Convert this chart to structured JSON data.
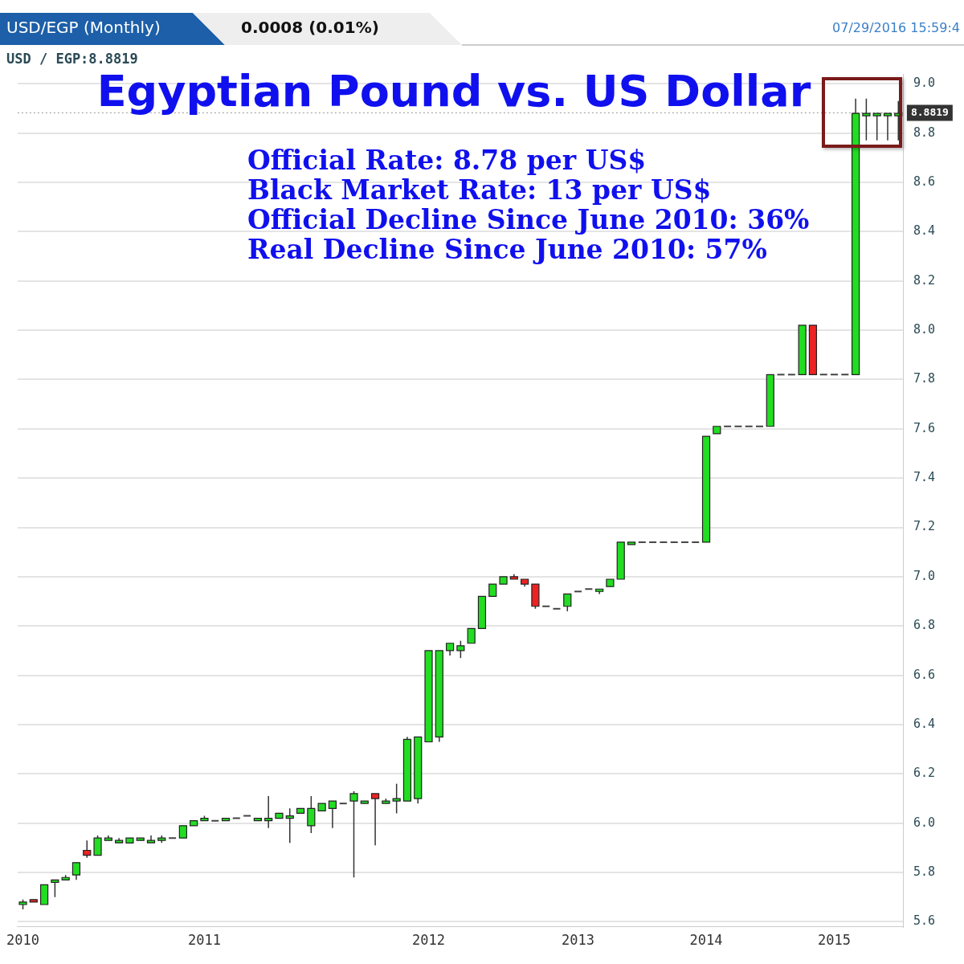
{
  "chart_data": {
    "type": "candlestick",
    "title": "Egyptian Pound vs. US Dollar",
    "annotations": [
      "USD/EGP (Monthly)",
      "0.0008 (0.01%)",
      "07/29/2016 15:59:4",
      "USD / EGP:8.8819",
      "Official Rate: 8.78 per US$",
      "Black Market Rate: 13 per US$",
      "Official Decline Since June 2010: 36%",
      "Real Decline Since June 2010: 57%"
    ],
    "categories": [
      "2010",
      null,
      null,
      null,
      null,
      null,
      null,
      null,
      null,
      null,
      null,
      null,
      null,
      null,
      null,
      null,
      null,
      "2011",
      null,
      null,
      null,
      null,
      null,
      null,
      null,
      null,
      null,
      null,
      null,
      null,
      null,
      null,
      null,
      null,
      null,
      null,
      null,
      null,
      "2012",
      null,
      null,
      null,
      null,
      null,
      null,
      null,
      null,
      null,
      null,
      null,
      null,
      null,
      "2013",
      null,
      null,
      null,
      null,
      null,
      null,
      null,
      null,
      null,
      null,
      null,
      "2014",
      null,
      null,
      null,
      null,
      null,
      null,
      null,
      null,
      null,
      null,
      null,
      "2015",
      null,
      null,
      null,
      null,
      null,
      null
    ],
    "ohlc": [
      [
        5.67,
        5.69,
        5.65,
        5.68
      ],
      [
        5.69,
        5.69,
        5.68,
        5.68
      ],
      [
        5.67,
        5.75,
        5.67,
        5.75
      ],
      [
        5.76,
        5.77,
        5.7,
        5.77
      ],
      [
        5.77,
        5.79,
        5.77,
        5.78
      ],
      [
        5.79,
        5.84,
        5.77,
        5.84
      ],
      [
        5.89,
        5.93,
        5.86,
        5.87
      ],
      [
        5.87,
        5.95,
        5.87,
        5.94
      ],
      [
        5.94,
        5.95,
        5.94,
        5.94
      ],
      [
        5.93,
        5.94,
        5.93,
        5.93
      ],
      [
        5.92,
        5.94,
        5.92,
        5.94
      ],
      [
        5.94,
        5.94,
        5.93,
        5.94
      ],
      [
        5.93,
        5.95,
        5.93,
        5.93
      ],
      [
        5.93,
        5.95,
        5.92,
        5.94
      ],
      [
        5.94,
        5.94,
        5.94,
        5.94
      ],
      [
        5.94,
        5.99,
        5.94,
        5.99
      ],
      [
        5.99,
        6.01,
        5.99,
        6.01
      ],
      [
        6.01,
        6.03,
        6.01,
        6.02
      ],
      [
        6.01,
        6.01,
        6.01,
        6.01
      ],
      [
        6.01,
        6.02,
        6.01,
        6.02
      ],
      [
        6.02,
        6.02,
        6.02,
        6.02
      ],
      [
        6.03,
        6.03,
        6.03,
        6.03
      ],
      [
        6.02,
        6.02,
        6.01,
        6.02
      ],
      [
        6.02,
        6.11,
        5.98,
        6.02
      ],
      [
        6.02,
        6.04,
        6.02,
        6.04
      ],
      [
        6.02,
        6.06,
        5.92,
        6.03
      ],
      [
        6.04,
        6.06,
        6.04,
        6.06
      ],
      [
        5.99,
        6.11,
        5.96,
        6.06
      ],
      [
        6.05,
        6.08,
        6.05,
        6.08
      ],
      [
        6.06,
        6.09,
        5.98,
        6.09
      ],
      [
        6.08,
        6.08,
        6.08,
        6.08
      ],
      [
        6.09,
        6.13,
        5.78,
        6.12
      ],
      [
        6.08,
        6.09,
        6.08,
        6.09
      ],
      [
        6.12,
        6.12,
        5.91,
        6.1
      ],
      [
        6.09,
        6.1,
        6.08,
        6.09
      ],
      [
        6.1,
        6.16,
        6.04,
        6.1
      ],
      [
        6.09,
        6.35,
        6.09,
        6.34
      ],
      [
        6.1,
        6.35,
        6.08,
        6.35
      ],
      [
        6.33,
        6.7,
        6.33,
        6.7
      ],
      [
        6.35,
        6.7,
        6.33,
        6.7
      ],
      [
        6.7,
        6.73,
        6.68,
        6.73
      ],
      [
        6.7,
        6.74,
        6.67,
        6.72
      ],
      [
        6.73,
        6.79,
        6.73,
        6.79
      ],
      [
        6.79,
        6.92,
        6.79,
        6.92
      ],
      [
        6.92,
        6.97,
        6.92,
        6.97
      ],
      [
        6.97,
        7.0,
        6.97,
        7.0
      ],
      [
        7.0,
        7.01,
        6.99,
        6.99
      ],
      [
        6.99,
        6.99,
        6.96,
        6.97
      ],
      [
        6.97,
        6.97,
        6.87,
        6.88
      ],
      [
        6.88,
        6.88,
        6.88,
        6.88
      ],
      [
        6.87,
        6.87,
        6.87,
        6.87
      ],
      [
        6.88,
        6.93,
        6.86,
        6.93
      ],
      [
        6.94,
        6.94,
        6.94,
        6.94
      ],
      [
        6.95,
        6.95,
        6.95,
        6.95
      ],
      [
        6.95,
        6.95,
        6.93,
        6.95
      ],
      [
        6.96,
        6.99,
        6.96,
        6.99
      ],
      [
        6.99,
        7.14,
        6.99,
        7.14
      ],
      [
        7.14,
        7.14,
        7.13,
        7.14
      ],
      [
        7.14,
        7.14,
        7.14,
        7.14
      ],
      [
        7.14,
        7.14,
        7.14,
        7.14
      ],
      [
        7.14,
        7.14,
        7.14,
        7.14
      ],
      [
        7.14,
        7.14,
        7.14,
        7.14
      ],
      [
        7.14,
        7.14,
        7.14,
        7.14
      ],
      [
        7.14,
        7.14,
        7.14,
        7.14
      ],
      [
        7.14,
        7.57,
        7.14,
        7.57
      ],
      [
        7.58,
        7.61,
        7.58,
        7.61
      ],
      [
        7.61,
        7.61,
        7.61,
        7.61
      ],
      [
        7.61,
        7.61,
        7.61,
        7.61
      ],
      [
        7.61,
        7.61,
        7.61,
        7.61
      ],
      [
        7.61,
        7.61,
        7.61,
        7.61
      ],
      [
        7.61,
        7.82,
        7.61,
        7.82
      ],
      [
        7.82,
        7.82,
        7.82,
        7.82
      ],
      [
        7.82,
        7.82,
        7.82,
        7.82
      ],
      [
        7.82,
        8.02,
        7.82,
        8.02
      ],
      [
        8.02,
        8.02,
        7.82,
        7.82
      ],
      [
        7.82,
        7.82,
        7.82,
        7.82
      ],
      [
        7.82,
        7.82,
        7.82,
        7.82
      ],
      [
        7.82,
        7.82,
        7.82,
        7.82
      ],
      [
        7.82,
        8.94,
        7.82,
        8.88
      ],
      [
        8.88,
        8.94,
        8.77,
        8.88
      ],
      [
        8.88,
        8.88,
        8.77,
        8.88
      ],
      [
        8.88,
        8.88,
        8.77,
        8.88
      ],
      [
        8.88,
        8.93,
        8.77,
        8.88
      ]
    ],
    "colors": [
      "#22dd22",
      "#ee2222",
      "#22dd22",
      "#22dd22",
      "#22dd22",
      "#22dd22",
      "#ee2222",
      "#22dd22",
      "#22dd22",
      "#22dd22",
      "#22dd22",
      "#22dd22",
      "#22dd22",
      "#22dd22",
      "#444444",
      "#22dd22",
      "#22dd22",
      "#22dd22",
      "#444444",
      "#22dd22",
      "#444444",
      "#444444",
      "#22dd22",
      "#22dd22",
      "#22dd22",
      "#22dd22",
      "#22dd22",
      "#22dd22",
      "#22dd22",
      "#22dd22",
      "#444444",
      "#22dd22",
      "#22dd22",
      "#ee2222",
      "#22dd22",
      "#22dd22",
      "#22dd22",
      "#22dd22",
      "#22dd22",
      "#22dd22",
      "#22dd22",
      "#22dd22",
      "#22dd22",
      "#22dd22",
      "#22dd22",
      "#22dd22",
      "#ee2222",
      "#ee2222",
      "#ee2222",
      "#444444",
      "#444444",
      "#22dd22",
      "#444444",
      "#444444",
      "#22dd22",
      "#22dd22",
      "#22dd22",
      "#22dd22",
      "#444444",
      "#444444",
      "#444444",
      "#444444",
      "#444444",
      "#444444",
      "#22dd22",
      "#22dd22",
      "#444444",
      "#444444",
      "#444444",
      "#444444",
      "#22dd22",
      "#444444",
      "#444444",
      "#22dd22",
      "#ee2222",
      "#444444",
      "#444444",
      "#444444",
      "#22dd22",
      "#22dd22",
      "#22dd22",
      "#22dd22",
      "#22dd22"
    ],
    "ylim": [
      5.58,
      9.04
    ],
    "yticks": [
      {
        "value": 5.6,
        "label": "5.6"
      },
      {
        "value": 5.8,
        "label": "5.8"
      },
      {
        "value": 6.0,
        "label": "6.0"
      },
      {
        "value": 6.2,
        "label": "6.2"
      },
      {
        "value": 6.4,
        "label": "6.4"
      },
      {
        "value": 6.6,
        "label": "6.6"
      },
      {
        "value": 6.8,
        "label": "6.8"
      },
      {
        "value": 7.0,
        "label": "7.0"
      },
      {
        "value": 7.2,
        "label": "7.2"
      },
      {
        "value": 7.4,
        "label": "7.4"
      },
      {
        "value": 7.6,
        "label": "7.6"
      },
      {
        "value": 7.8,
        "label": "7.8"
      },
      {
        "value": 8.0,
        "label": "8.0"
      },
      {
        "value": 8.2,
        "label": "8.2"
      },
      {
        "value": 8.4,
        "label": "8.4"
      },
      {
        "value": 8.6,
        "label": "8.6"
      },
      {
        "value": 8.8,
        "label": "8.8"
      },
      {
        "value": 9.0,
        "label": "9.0"
      }
    ],
    "ref_lines": [
      {
        "axis": "y",
        "value": 8.8819,
        "label": "8.8819",
        "line_style": "dotted",
        "color": "#999999"
      }
    ],
    "grid": "y",
    "legend": false
  }
}
